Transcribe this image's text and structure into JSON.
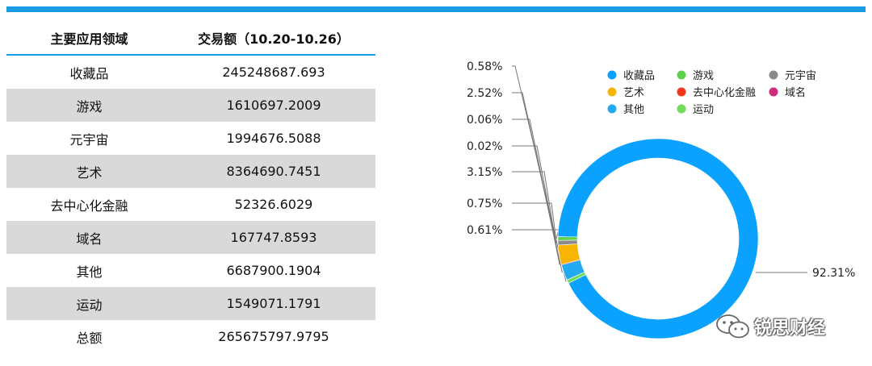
{
  "table": {
    "header": {
      "name": "主要应用领域",
      "value": "交易额（10.20-10.26）"
    },
    "rows": [
      {
        "name": "收藏品",
        "value": "245248687.693"
      },
      {
        "name": "游戏",
        "value": "1610697.2009"
      },
      {
        "name": "元宇宙",
        "value": "1994676.5088"
      },
      {
        "name": "艺术",
        "value": "8364690.7451"
      },
      {
        "name": "去中心化金融",
        "value": "52326.6029"
      },
      {
        "name": "域名",
        "value": "167747.8593"
      },
      {
        "name": "其他",
        "value": "6687900.1904"
      },
      {
        "name": "运动",
        "value": "1549071.1791"
      },
      {
        "name": "总额",
        "value": "265675797.9795"
      }
    ]
  },
  "chart_data": {
    "type": "pie",
    "style": "donut",
    "legend_position": "top-right",
    "slices": [
      {
        "name": "收藏品",
        "value": 245248687.693,
        "label": "92.31%",
        "color": "#0aa1ff"
      },
      {
        "name": "游戏",
        "value": 1610697.2009,
        "label": "0.61%",
        "color": "#5fd24d"
      },
      {
        "name": "元宇宙",
        "value": 1994676.5088,
        "label": "0.75%",
        "color": "#8a8a8a"
      },
      {
        "name": "艺术",
        "value": 8364690.7451,
        "label": "3.15%",
        "color": "#f7b500"
      },
      {
        "name": "去中心化金融",
        "value": 52326.6029,
        "label": "0.02%",
        "color": "#f3371a"
      },
      {
        "name": "域名",
        "value": 167747.8593,
        "label": "0.06%",
        "color": "#d02a7e"
      },
      {
        "name": "其他",
        "value": 6687900.1904,
        "label": "2.52%",
        "color": "#23aaf2"
      },
      {
        "name": "运动",
        "value": 1549071.1791,
        "label": "0.58%",
        "color": "#72dc5b"
      }
    ]
  },
  "watermark": {
    "text": "锐思财经",
    "icon": "wechat-icon"
  }
}
